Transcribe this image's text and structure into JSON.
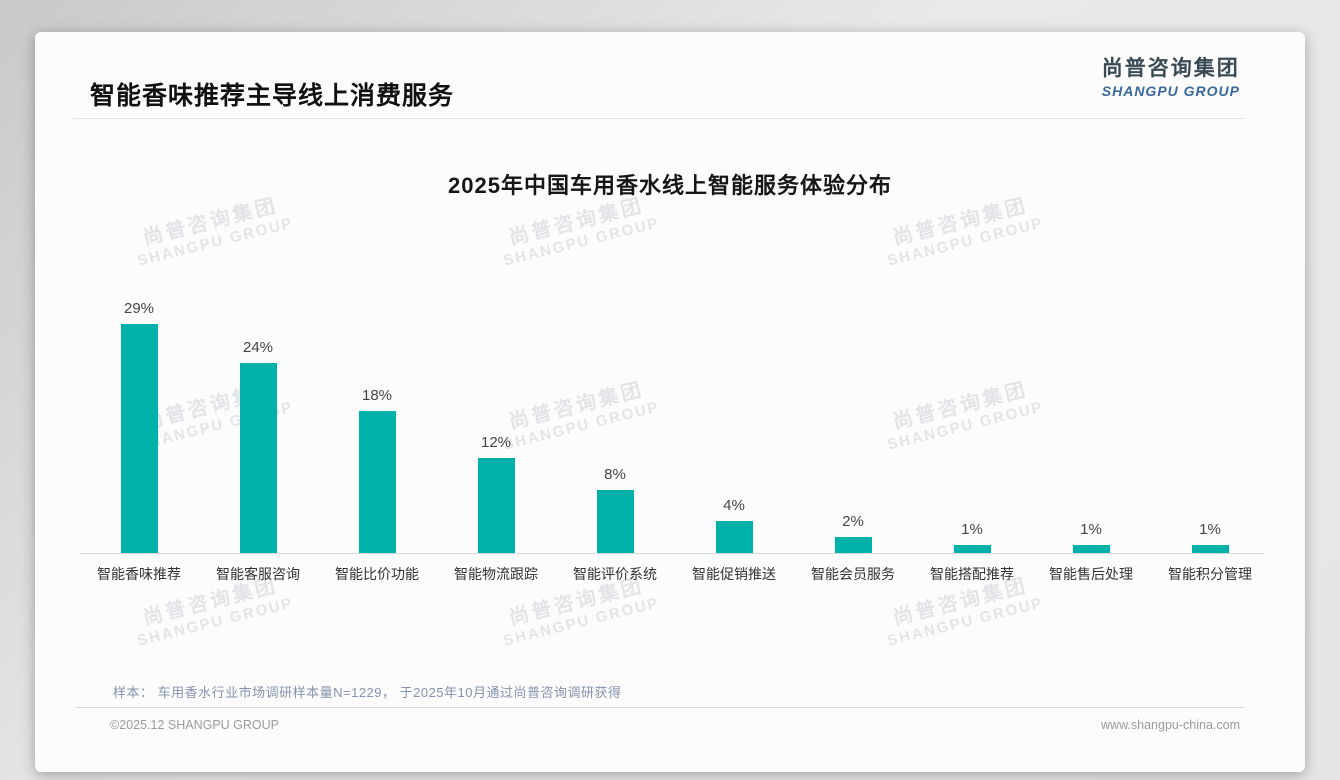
{
  "page": {
    "title": "智能香味推荐主导线上消费服务",
    "logo": {
      "cn": "尚普咨询集团",
      "en": "SHANGPU GROUP"
    },
    "watermark": {
      "cn": "尚普咨询集团",
      "en": "SHANGPU GROUP"
    },
    "note": "样本： 车用香水行业市场调研样本量N=1229， 于2025年10月通过尚普咨询调研获得",
    "footer_left": "©2025.12 SHANGPU GROUP",
    "footer_right": "www.shangpu-china.com"
  },
  "colors": {
    "bar": "#00b1a9",
    "title_text": "#111111",
    "logo_cn": "#3a4a55",
    "logo_en": "#39689a",
    "note_text": "#8493ad",
    "footer_text": "#9b9b9b",
    "axis_line": "#d9d9d9"
  },
  "chart_data": {
    "type": "bar",
    "title": "2025年中国车用香水线上智能服务体验分布",
    "categories": [
      "智能香味推荐",
      "智能客服咨询",
      "智能比价功能",
      "智能物流跟踪",
      "智能评价系统",
      "智能促销推送",
      "智能会员服务",
      "智能搭配推荐",
      "智能售后处理",
      "智能积分管理"
    ],
    "values": [
      29,
      24,
      18,
      12,
      8,
      4,
      2,
      1,
      1,
      1
    ],
    "unit": "%",
    "xlabel": "",
    "ylabel": "",
    "ylim": [
      0,
      32
    ],
    "grid": false,
    "legend": "none",
    "value_labels": true,
    "bar_color": "#00b1a9"
  }
}
